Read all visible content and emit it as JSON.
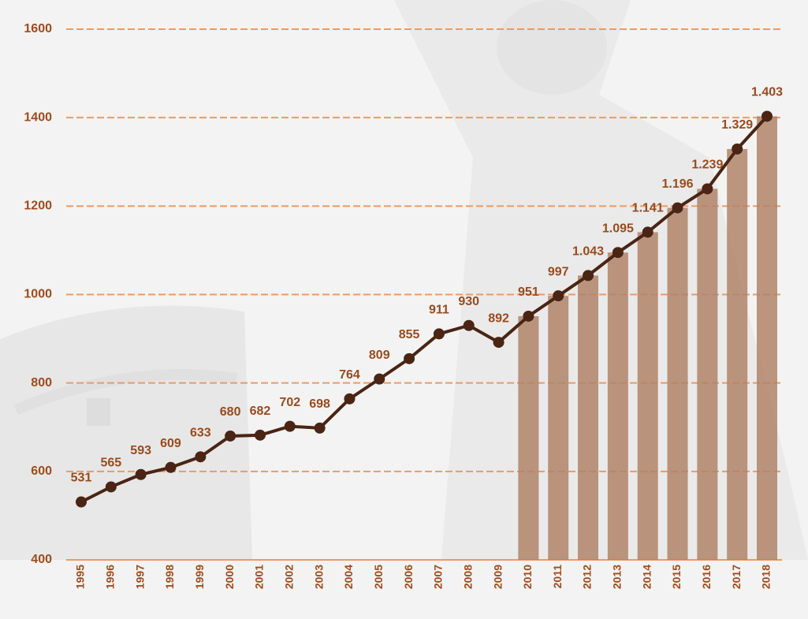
{
  "chart_data": {
    "type": "line",
    "x": [
      "1995",
      "1996",
      "1997",
      "1998",
      "1999",
      "2000",
      "2001",
      "2002",
      "2003",
      "2004",
      "2005",
      "2006",
      "2007",
      "2008",
      "2009",
      "2010",
      "2011",
      "2012",
      "2013",
      "2014",
      "2015",
      "2016",
      "2017",
      "2018"
    ],
    "series": [
      {
        "type": "bar",
        "color": "#b08468",
        "values": [
          null,
          null,
          null,
          null,
          null,
          null,
          null,
          null,
          null,
          null,
          null,
          null,
          null,
          null,
          null,
          951,
          997,
          1043,
          1095,
          1141,
          1196,
          1239,
          1329,
          1403
        ]
      },
      {
        "type": "line",
        "color": "#4a2414",
        "values": [
          531,
          565,
          593,
          609,
          633,
          680,
          682,
          702,
          698,
          764,
          809,
          855,
          911,
          930,
          892,
          951,
          997,
          1043,
          1095,
          1141,
          1196,
          1239,
          1329,
          1403
        ],
        "value_labels": [
          "531",
          "565",
          "593",
          "609",
          "633",
          "680",
          "682",
          "702",
          "698",
          "764",
          "809",
          "855",
          "911",
          "930",
          "892",
          "951",
          "997",
          "1.043",
          "1.095",
          "1.141",
          "1.196",
          "1.239",
          "1.329",
          "1.403"
        ]
      }
    ],
    "ylim": [
      400,
      1600
    ],
    "yticks": [
      400,
      600,
      800,
      1000,
      1200,
      1400,
      1600
    ],
    "grid": true
  }
}
